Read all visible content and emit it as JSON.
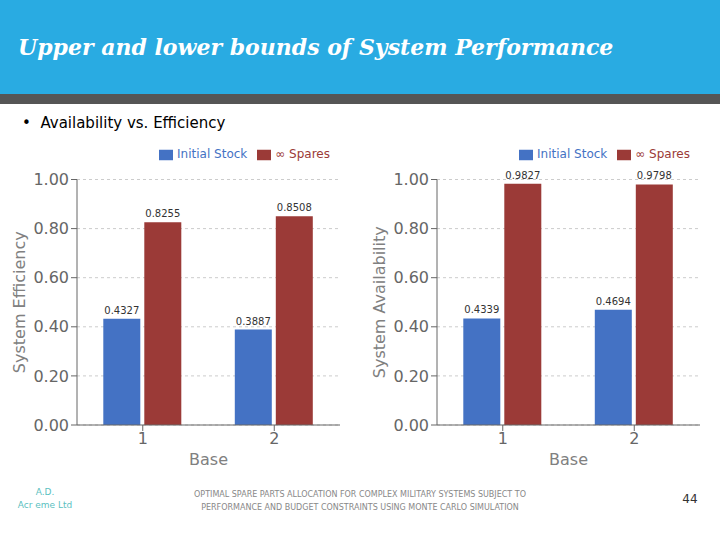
{
  "title": "Upper and lower bounds of System Performance",
  "subtitle": "•  Availability vs. Efficiency",
  "annotations": [
    "OPTIMAL SPARE PARTS ALLOCATION FOR COMPLEX MILITARY SYSTEMS SUBJECT TO",
    "PERFORMANCE AND BUDGET CONSTRAINTS USING MONTE CARLO SIMULATION",
    "44",
    "A.D.",
    "Acr eme Ltd"
  ],
  "chart_data": [
    {
      "type": "bar",
      "xlabel": "Base",
      "ylabel": "System Efficiency",
      "categories": [
        "1",
        "2"
      ],
      "series": [
        {
          "name": "Initial Stock",
          "color": "#4472C4",
          "values": [
            0.4327,
            0.3887
          ]
        },
        {
          "name": "∞ Spares",
          "color": "#9B3A37",
          "values": [
            0.8255,
            0.8508
          ]
        }
      ],
      "ylim": [
        0.0,
        1.0
      ],
      "yticks": [
        {
          "value": 0.0,
          "label": "0.00"
        },
        {
          "value": 0.2,
          "label": "0.20"
        },
        {
          "value": 0.4,
          "label": "0.40"
        },
        {
          "value": 0.6,
          "label": "0.60"
        },
        {
          "value": 0.8,
          "label": "0.80"
        },
        {
          "value": 1.0,
          "label": "1.00"
        }
      ],
      "grid": true,
      "legend": "upper right",
      "data_labels": true
    },
    {
      "type": "bar",
      "xlabel": "Base",
      "ylabel": "System Availability",
      "categories": [
        "1",
        "2"
      ],
      "series": [
        {
          "name": "Initial Stock",
          "color": "#4472C4",
          "values": [
            0.4339,
            0.4694
          ]
        },
        {
          "name": "∞ Spares",
          "color": "#9B3A37",
          "values": [
            0.9827,
            0.9798
          ]
        }
      ],
      "ylim": [
        0.0,
        1.0
      ],
      "yticks": [
        {
          "value": 0.0,
          "label": "0.00"
        },
        {
          "value": 0.2,
          "label": "0.20"
        },
        {
          "value": 0.4,
          "label": "0.40"
        },
        {
          "value": 0.6,
          "label": "0.60"
        },
        {
          "value": 0.8,
          "label": "0.80"
        },
        {
          "value": 1.0,
          "label": "1.00"
        }
      ],
      "grid": true,
      "legend": "upper right",
      "data_labels": true
    }
  ]
}
